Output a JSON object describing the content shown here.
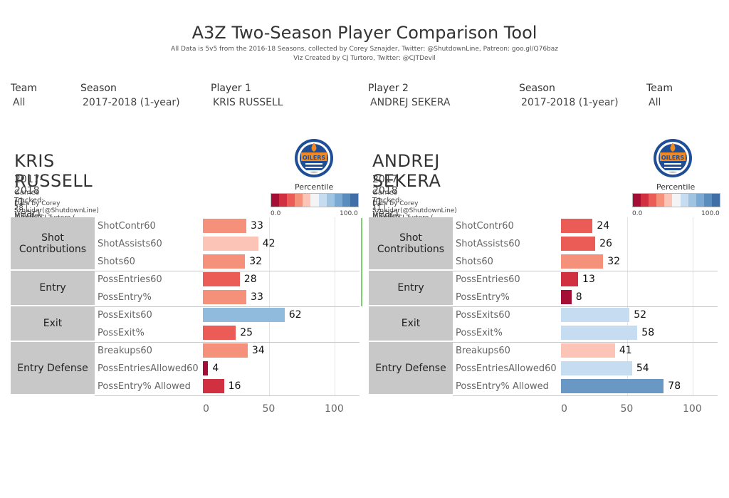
{
  "header": {
    "title": "A3Z Two-Season Player Comparison Tool",
    "subtitle1": "All Data is 5v5 from the 2016-18 Seasons, collected by Corey Sznajder, Twitter: @ShutdownLine, Patreon: goo.gl/Q76baz",
    "subtitle2": "Viz Created by CJ Turtoro, Twitter: @CJTDevil"
  },
  "filters": [
    {
      "label": "Team",
      "value": "All"
    },
    {
      "label": "Season",
      "value": "2017-2018 (1-year)"
    },
    {
      "label": "Player 1",
      "value": "KRIS RUSSELL"
    },
    {
      "label": "Player 2",
      "value": "ANDREJ SEKERA"
    },
    {
      "label": "Season",
      "value": "2017-2018 (1-year)"
    },
    {
      "label": "Team",
      "value": "All"
    }
  ],
  "legend": {
    "title": "Percentile",
    "min_label": "0.0",
    "max_label": "100.0"
  },
  "colors": {
    "scale": [
      "#a50f36",
      "#d0303f",
      "#ea5c55",
      "#f5907b",
      "#fbc4b6",
      "#f4f4f4",
      "#c6dcf0",
      "#9fc4e2",
      "#7aaad3",
      "#5a8cbd",
      "#3f6fa6"
    ],
    "category_bg": "#c8c8c8"
  },
  "axis_ticks": [
    "0",
    "50",
    "100"
  ],
  "players": [
    {
      "name": "KRIS RUSSELL",
      "season_line": "2017-2018 (1-year) | EDM (D)",
      "tracked_line": "Games Tracked: 28  | Minutes Tracked: 455",
      "credit_line": "Data by Corey Sznajder(@ShutdownLine) | Viz by CJ Turtoro ( @CJTDevil)",
      "logo_text": "OILERS",
      "categories": [
        {
          "name": "Shot Contributions",
          "metrics": [
            {
              "label": "ShotContr60",
              "value": 33,
              "color": "#f5907b"
            },
            {
              "label": "ShotAssists60",
              "value": 42,
              "color": "#fbc4b6"
            },
            {
              "label": "Shots60",
              "value": 32,
              "color": "#f5907b"
            }
          ]
        },
        {
          "name": "Entry",
          "metrics": [
            {
              "label": "PossEntries60",
              "value": 28,
              "color": "#ea5c55"
            },
            {
              "label": "PossEntry%",
              "value": 33,
              "color": "#f5907b"
            }
          ]
        },
        {
          "name": "Exit",
          "metrics": [
            {
              "label": "PossExits60",
              "value": 62,
              "color": "#90bbdd"
            },
            {
              "label": "PossExit%",
              "value": 25,
              "color": "#ea5c55"
            }
          ]
        },
        {
          "name": "Entry Defense",
          "metrics": [
            {
              "label": "Breakups60",
              "value": 34,
              "color": "#f5907b"
            },
            {
              "label": "PossEntriesAllowed60",
              "value": 4,
              "color": "#a50f36"
            },
            {
              "label": "PossEntry% Allowed",
              "value": 16,
              "color": "#d0303f"
            }
          ]
        }
      ]
    },
    {
      "name": "ANDREJ SEKERA",
      "season_line": "2017-2018 (1-year) | EDM (D)",
      "tracked_line": "Games Tracked: 11  | Minutes Tracked: 159",
      "credit_line": "Data by Corey Sznajder(@ShutdownLine) | Viz by CJ Turtoro ( @CJTDevil)",
      "logo_text": "OILERS",
      "categories": [
        {
          "name": "Shot Contributions",
          "metrics": [
            {
              "label": "ShotContr60",
              "value": 24,
              "color": "#ea5c55"
            },
            {
              "label": "ShotAssists60",
              "value": 26,
              "color": "#ea5c55"
            },
            {
              "label": "Shots60",
              "value": 32,
              "color": "#f5907b"
            }
          ]
        },
        {
          "name": "Entry",
          "metrics": [
            {
              "label": "PossEntries60",
              "value": 13,
              "color": "#d0303f"
            },
            {
              "label": "PossEntry%",
              "value": 8,
              "color": "#a50f36"
            }
          ]
        },
        {
          "name": "Exit",
          "metrics": [
            {
              "label": "PossExits60",
              "value": 52,
              "color": "#c6dcf0"
            },
            {
              "label": "PossExit%",
              "value": 58,
              "color": "#c6dcf0"
            }
          ]
        },
        {
          "name": "Entry Defense",
          "metrics": [
            {
              "label": "Breakups60",
              "value": 41,
              "color": "#fbc4b6"
            },
            {
              "label": "PossEntriesAllowed60",
              "value": 54,
              "color": "#c6dcf0"
            },
            {
              "label": "PossEntry% Allowed",
              "value": 78,
              "color": "#6a98c4"
            }
          ]
        }
      ]
    }
  ]
}
